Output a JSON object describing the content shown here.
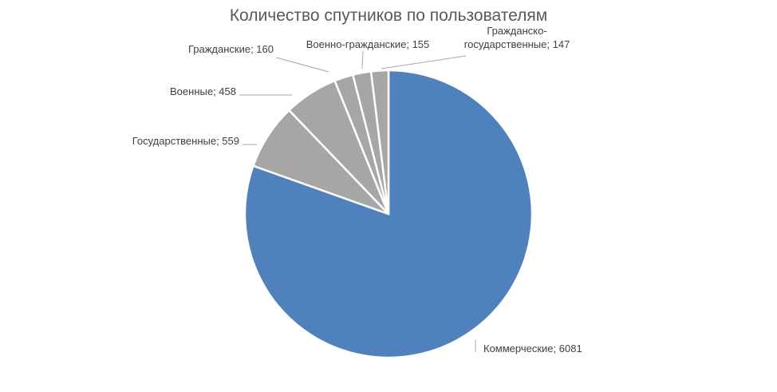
{
  "chart_data": {
    "type": "pie",
    "title": "Количество спутников по пользователям",
    "categories": [
      "Коммерческие",
      "Государственные",
      "Военные",
      "Гражданские",
      "Военно-гражданские",
      "Гражданско-государственные"
    ],
    "values": [
      6081,
      559,
      458,
      160,
      155,
      147
    ],
    "labels": [
      [
        "Коммерческие; 6081"
      ],
      [
        "Государственные; 559"
      ],
      [
        "Военные; 458"
      ],
      [
        "Гражданские; 160"
      ],
      [
        "Военно-гражданские; 155"
      ],
      [
        "Гражданско-",
        "государственные; 147"
      ]
    ],
    "colors": [
      "#4f81bd",
      "#a6a6a6",
      "#a6a6a6",
      "#a6a6a6",
      "#a6a6a6",
      "#a6a6a6"
    ],
    "legend": "none",
    "label_position": "outside with leader lines"
  }
}
